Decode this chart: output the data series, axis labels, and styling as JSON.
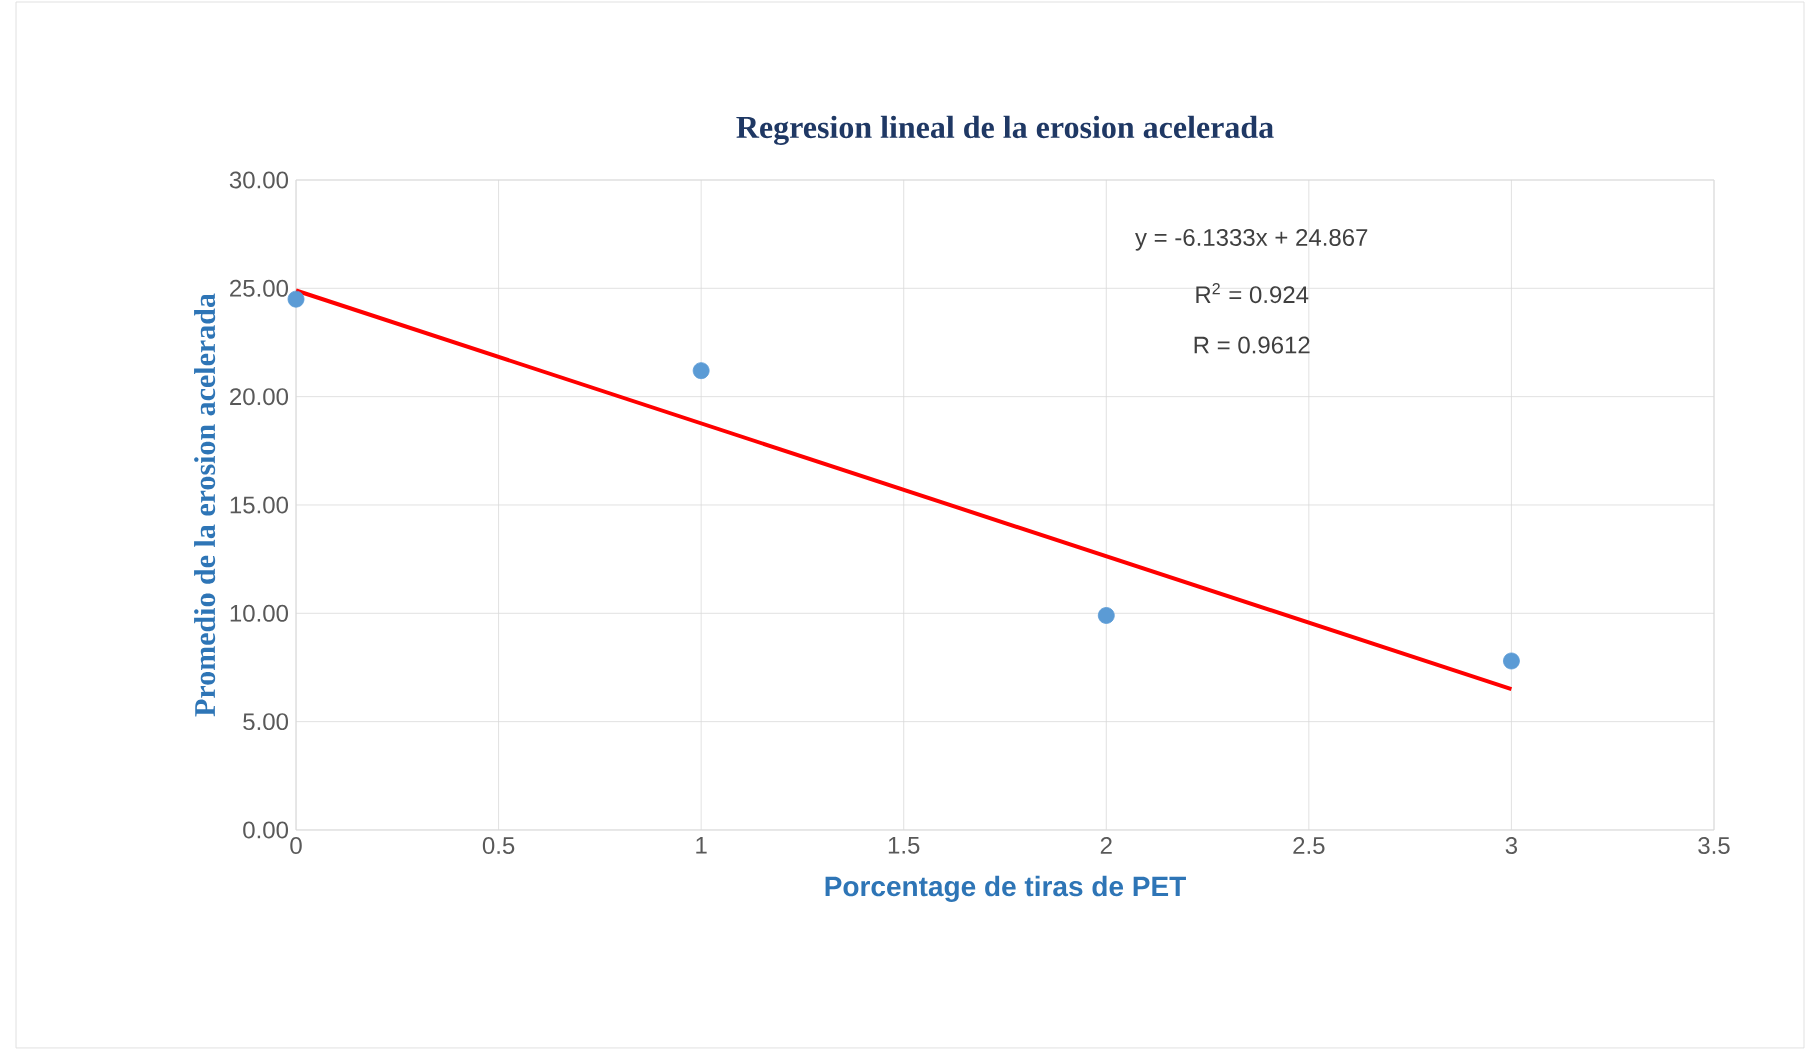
{
  "chart_data": {
    "type": "scatter",
    "title": "Regresion lineal de la erosion acelerada",
    "xlabel": "Porcentage de tiras de PET",
    "ylabel": "Promedio de la erosion acelerada",
    "series": [
      {
        "color": "#5b9bd5",
        "marker": "circle",
        "x": [
          0,
          1,
          2,
          3
        ],
        "values": [
          24.5,
          21.2,
          9.9,
          7.8
        ]
      },
      {
        "type": "line",
        "marker": "none",
        "color": "#ff0000",
        "x": [
          0,
          3
        ],
        "values": [
          24.9,
          6.5
        ]
      }
    ],
    "grid": true,
    "xlim": [
      0,
      3.5
    ],
    "xticks": [
      0,
      0.5,
      1,
      1.5,
      2,
      2.5,
      3,
      3.5
    ],
    "ylim": [
      0,
      30
    ],
    "yticks": [
      {
        "value": 0,
        "label": "0.00"
      },
      {
        "value": 5,
        "label": "5.00"
      },
      {
        "value": 10,
        "label": "10.00"
      },
      {
        "value": 15,
        "label": "15.00"
      },
      {
        "value": 20,
        "label": "20.00"
      },
      {
        "value": 25,
        "label": "25.00"
      },
      {
        "value": 30,
        "label": "30.00"
      }
    ],
    "annotations": [
      "y = -6.1333x + 24.867",
      "R$^{2}$ = 0.924",
      "R = 0.9612"
    ]
  }
}
